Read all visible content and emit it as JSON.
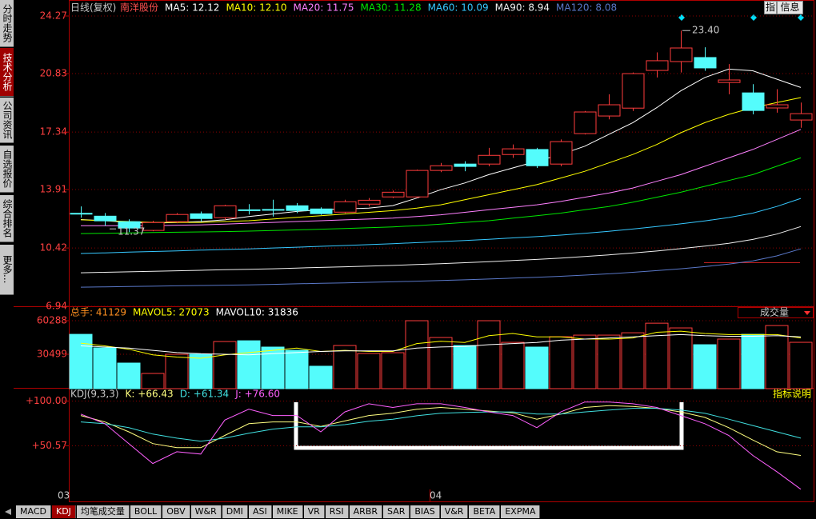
{
  "sidebar": [
    "分时走势",
    "技术分析",
    "公司资讯",
    "自选报价",
    "综合排名",
    "更多..."
  ],
  "buttons": [
    "指",
    "信息"
  ],
  "tabs": [
    "MACD",
    "KDJ",
    "均笔成交量",
    "BOLL",
    "OBV",
    "W&R",
    "DMI",
    "ASI",
    "MIKE",
    "VR",
    "RSI",
    "ARBR",
    "SAR",
    "BIAS",
    "V&R",
    "BETA",
    "EXPMA"
  ],
  "chart_data": [
    {
      "type": "candlestick",
      "title": "日线(复权)",
      "stock": "南洋股份",
      "open": [
        12.49,
        12.32,
        11.99,
        11.47,
        11.99,
        12.46,
        12.23,
        12.7,
        12.72,
        12.94,
        12.75,
        12.56,
        13.04,
        13.47,
        13.47,
        15.05,
        15.43,
        15.43,
        16.0,
        16.3,
        15.43,
        17.25,
        18.3,
        18.77,
        21.02,
        21.55,
        21.79,
        20.3,
        19.68,
        18.78,
        18.06
      ],
      "high": [
        12.9,
        12.51,
        12.13,
        12.04,
        12.5,
        12.6,
        13.0,
        13.04,
        13.3,
        13.1,
        12.85,
        13.3,
        13.4,
        13.85,
        15.1,
        15.5,
        15.6,
        16.4,
        16.6,
        16.4,
        16.9,
        18.6,
        19.6,
        20.9,
        22.1,
        23.4,
        22.4,
        21.4,
        20.2,
        19.9,
        19.1
      ],
      "low": [
        12.23,
        11.75,
        11.37,
        11.42,
        11.9,
        12.0,
        12.1,
        12.42,
        12.3,
        12.5,
        12.4,
        12.5,
        12.9,
        13.4,
        13.4,
        14.95,
        15.0,
        15.3,
        15.8,
        15.2,
        15.3,
        17.2,
        18.1,
        18.6,
        20.6,
        20.9,
        21.0,
        19.6,
        18.4,
        18.5,
        17.6
      ],
      "close": [
        12.45,
        12.04,
        11.61,
        11.94,
        12.42,
        12.18,
        12.94,
        12.66,
        12.68,
        12.66,
        12.47,
        13.18,
        13.27,
        13.75,
        15.05,
        15.33,
        15.29,
        15.95,
        16.34,
        15.33,
        16.77,
        18.54,
        18.97,
        20.83,
        21.6,
        22.36,
        21.17,
        20.45,
        18.63,
        18.97,
        18.44
      ],
      "up_color": "#ff3c3c",
      "down_color": "#54fcfc",
      "ylim": [
        6.94,
        24.27
      ],
      "yticks": [
        24.27,
        20.83,
        17.34,
        13.91,
        10.42,
        6.94
      ],
      "grid": true,
      "max_label": "23.40",
      "min_label": "11.37",
      "x_labels": [
        "03",
        "04"
      ],
      "series": [
        {
          "label": "MA5: 12.12",
          "color": "#ffffff",
          "values": [
            12.12,
            12.05,
            11.95,
            11.9,
            11.95,
            12.0,
            12.1,
            12.3,
            12.45,
            12.6,
            12.7,
            12.75,
            12.8,
            12.95,
            13.4,
            13.9,
            14.3,
            14.8,
            15.2,
            15.6,
            16.0,
            16.5,
            17.2,
            17.9,
            18.8,
            19.8,
            20.6,
            21.1,
            21.0,
            20.5,
            20.0
          ]
        },
        {
          "label": "MA10: 12.10",
          "color": "#ffff00",
          "values": [
            12.1,
            12.05,
            12.0,
            11.95,
            11.95,
            11.95,
            12.0,
            12.05,
            12.15,
            12.25,
            12.35,
            12.45,
            12.55,
            12.65,
            12.8,
            13.0,
            13.3,
            13.6,
            13.9,
            14.2,
            14.6,
            15.0,
            15.5,
            16.0,
            16.6,
            17.3,
            17.9,
            18.4,
            18.8,
            19.1,
            19.4
          ]
        },
        {
          "label": "MA20: 11.75",
          "color": "#ff80ff",
          "values": [
            11.75,
            11.75,
            11.75,
            11.75,
            11.78,
            11.8,
            11.85,
            11.9,
            11.95,
            12.0,
            12.05,
            12.1,
            12.15,
            12.2,
            12.3,
            12.4,
            12.55,
            12.7,
            12.85,
            13.0,
            13.2,
            13.45,
            13.7,
            14.0,
            14.4,
            14.8,
            15.3,
            15.8,
            16.3,
            16.9,
            17.5
          ]
        },
        {
          "label": "MA30: 11.28",
          "color": "#00e600",
          "values": [
            11.28,
            11.3,
            11.32,
            11.34,
            11.36,
            11.38,
            11.4,
            11.43,
            11.46,
            11.5,
            11.54,
            11.58,
            11.63,
            11.68,
            11.75,
            11.85,
            11.95,
            12.05,
            12.2,
            12.35,
            12.5,
            12.7,
            12.9,
            13.15,
            13.45,
            13.75,
            14.1,
            14.45,
            14.8,
            15.3,
            15.8
          ]
        },
        {
          "label": "MA60: 10.09",
          "color": "#36c8ff",
          "values": [
            10.09,
            10.13,
            10.17,
            10.21,
            10.25,
            10.29,
            10.33,
            10.37,
            10.42,
            10.47,
            10.52,
            10.57,
            10.62,
            10.68,
            10.74,
            10.8,
            10.87,
            10.94,
            11.02,
            11.1,
            11.19,
            11.3,
            11.42,
            11.55,
            11.7,
            11.86,
            12.04,
            12.24,
            12.5,
            12.9,
            13.38
          ]
        },
        {
          "label": "MA90: 8.94",
          "color": "#f0f0f0",
          "values": [
            8.94,
            8.97,
            9.0,
            9.03,
            9.06,
            9.09,
            9.12,
            9.15,
            9.18,
            9.22,
            9.26,
            9.3,
            9.34,
            9.38,
            9.43,
            9.48,
            9.54,
            9.6,
            9.67,
            9.74,
            9.82,
            9.91,
            10.01,
            10.12,
            10.24,
            10.38,
            10.53,
            10.7,
            10.93,
            11.25,
            11.7
          ]
        },
        {
          "label": "MA120: 8.08",
          "color": "#5a78c8",
          "values": [
            8.08,
            8.1,
            8.12,
            8.14,
            8.16,
            8.18,
            8.2,
            8.22,
            8.25,
            8.28,
            8.31,
            8.34,
            8.37,
            8.4,
            8.44,
            8.48,
            8.52,
            8.57,
            8.62,
            8.67,
            8.73,
            8.8,
            8.88,
            8.97,
            9.07,
            9.18,
            9.31,
            9.46,
            9.65,
            9.95,
            10.37
          ]
        }
      ]
    },
    {
      "type": "bar",
      "title": "总手: 41129",
      "indicator": "成交量",
      "values": [
        48200,
        36200,
        22700,
        13500,
        30500,
        30500,
        41800,
        42500,
        36900,
        34000,
        19900,
        38300,
        31200,
        31900,
        60300,
        45400,
        38300,
        60300,
        41100,
        36900,
        46100,
        47500,
        47500,
        49600,
        58100,
        53900,
        39000,
        44000,
        48200,
        56000,
        41129
      ],
      "up_color": "#ff3c3c",
      "down_color": "#54fcfc",
      "ylim": [
        0,
        66000
      ],
      "yticks": [
        60288,
        30499
      ],
      "grid": true,
      "series": [
        {
          "label": "MAVOL5: 27073",
          "color": "#ffff00",
          "values": [
            40400,
            38000,
            35000,
            30000,
            28000,
            27000,
            30000,
            32000,
            34000,
            36000,
            33000,
            34000,
            33000,
            33000,
            40000,
            42000,
            41000,
            47000,
            49000,
            46000,
            46000,
            44000,
            44000,
            45000,
            50000,
            51000,
            49000,
            48000,
            48000,
            48000,
            45000
          ]
        },
        {
          "label": "MAVOL10: 31836",
          "color": "#ffffff",
          "values": [
            38000,
            37000,
            36000,
            34000,
            32000,
            31000,
            30500,
            30000,
            31000,
            32000,
            33000,
            33500,
            33500,
            33500,
            36000,
            37000,
            37500,
            39000,
            40000,
            41000,
            43000,
            44000,
            45000,
            46000,
            47000,
            48000,
            47000,
            46500,
            46500,
            47000,
            46000
          ]
        }
      ]
    },
    {
      "type": "line",
      "title": "KDJ(9,3,3)",
      "help": "指标说明",
      "ylim": [
        -2,
        104
      ],
      "yticks": [
        {
          "value": 100,
          "label": "+100.00"
        },
        {
          "value": 50.57,
          "label": "+50.57"
        }
      ],
      "grid": true,
      "series": [
        {
          "label": "K: +66.43",
          "color": "#ffff80",
          "values": [
            84,
            77,
            66,
            53,
            48.5,
            48.5,
            62,
            75,
            77,
            77,
            72,
            78,
            84,
            86.5,
            91,
            93,
            91,
            89,
            87,
            80,
            85.6,
            93,
            95,
            94,
            92,
            88,
            82,
            70.6,
            57,
            44,
            40
          ]
        },
        {
          "label": "D: +61.34",
          "color": "#40e0e0",
          "values": [
            77,
            75,
            70.6,
            63.5,
            59,
            55.6,
            59,
            64.4,
            69,
            71.5,
            71.5,
            74,
            77.7,
            80,
            83.8,
            86.5,
            87.4,
            88,
            88,
            85.6,
            85.6,
            88,
            90,
            92,
            92,
            90,
            86.5,
            80,
            73,
            66,
            59
          ]
        },
        {
          "label": "J: +76.60",
          "color": "#ff60ff",
          "values": [
            85.6,
            75,
            53,
            31,
            44,
            41.5,
            79,
            91,
            84,
            84,
            66,
            88,
            97,
            93,
            97,
            97,
            93,
            88,
            84,
            70.6,
            88,
            99,
            99,
            97,
            93,
            84,
            75,
            62,
            40,
            22,
            2.6
          ]
        }
      ]
    }
  ]
}
